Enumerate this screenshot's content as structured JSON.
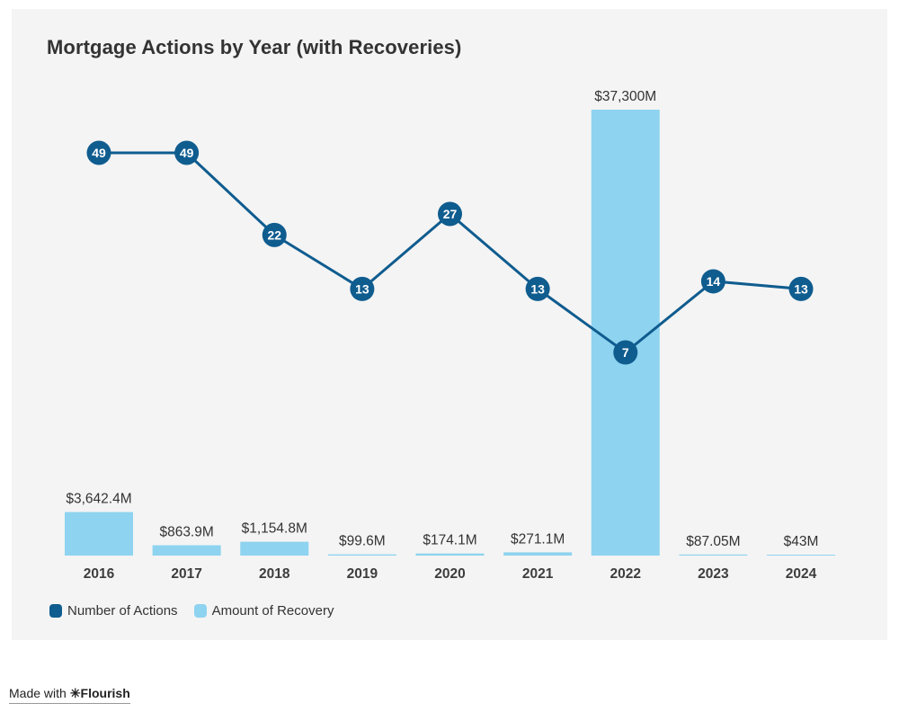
{
  "title": "Mortgage Actions by Year (with Recoveries)",
  "colors": {
    "actions": "#0f5c8f",
    "recovery": "#8ed3ef",
    "card_background": "#f4f4f4",
    "text": "#333333"
  },
  "legend": {
    "items": [
      {
        "label": "Number of Actions",
        "color": "#0f5c8f"
      },
      {
        "label": "Amount of Recovery",
        "color": "#8ed3ef"
      }
    ]
  },
  "footer": {
    "prefix": "Made with",
    "logo_glyph": "✳",
    "brand": "Flourish"
  },
  "chart_data": {
    "type": "combo",
    "title": "Mortgage Actions by Year (with Recoveries)",
    "categories": [
      "2016",
      "2017",
      "2018",
      "2019",
      "2020",
      "2021",
      "2022",
      "2023",
      "2024"
    ],
    "series": [
      {
        "name": "Number of Actions",
        "type": "line",
        "color": "#0f5c8f",
        "values": [
          49,
          49,
          22,
          13,
          27,
          13,
          7,
          14,
          13
        ],
        "point_labels": [
          "49",
          "49",
          "22",
          "13",
          "27",
          "13",
          "7",
          "14",
          "13"
        ],
        "scale": "log"
      },
      {
        "name": "Amount of Recovery",
        "type": "bar",
        "color": "#8ed3ef",
        "unit": "$M",
        "values": [
          3642.4,
          863.9,
          1154.8,
          99.6,
          174.1,
          271.1,
          37300,
          87.05,
          43
        ],
        "value_labels": [
          "$3,642.4M",
          "$863.9M",
          "$1,154.8M",
          "$99.6M",
          "$174.1M",
          "$271.1M",
          "$37,300M",
          "$87.05M",
          "$43M"
        ],
        "ylim": [
          0,
          37300
        ]
      }
    ],
    "xlabel": "",
    "ylabel": "",
    "grid": false,
    "legend_position": "bottom-left"
  }
}
